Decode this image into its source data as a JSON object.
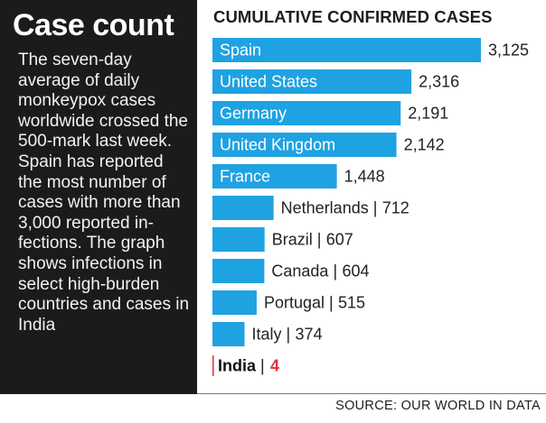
{
  "sidebar": {
    "headline": "Case count",
    "body": "The seven-day average of daily monkeypox cases worldwide crossed the 500-mark last week. Spain has reported the most number of cases with more than 3,000 reported in-fections. The graph shows infections in select high-burden countries and cases in India"
  },
  "source": "SOURCE: OUR WORLD IN DATA",
  "colors": {
    "bar": "#1fa2e2",
    "highlight": "#e0303a",
    "panel": "#1b1b1b"
  },
  "chart_data": {
    "type": "bar",
    "orientation": "horizontal",
    "title": "CUMULATIVE CONFIRMED CASES",
    "categories": [
      "Spain",
      "United States",
      "Germany",
      "United Kingdom",
      "France",
      "Netherlands",
      "Brazil",
      "Canada",
      "Portugal",
      "Italy",
      "India"
    ],
    "values": [
      3125,
      2316,
      2191,
      2142,
      1448,
      712,
      607,
      604,
      515,
      374,
      4
    ],
    "value_labels": [
      "3,125",
      "2,316",
      "2,191",
      "2,142",
      "1,448",
      "712",
      "607",
      "604",
      "515",
      "374",
      "4"
    ],
    "highlight": "India",
    "grid": false,
    "legend": "none"
  }
}
